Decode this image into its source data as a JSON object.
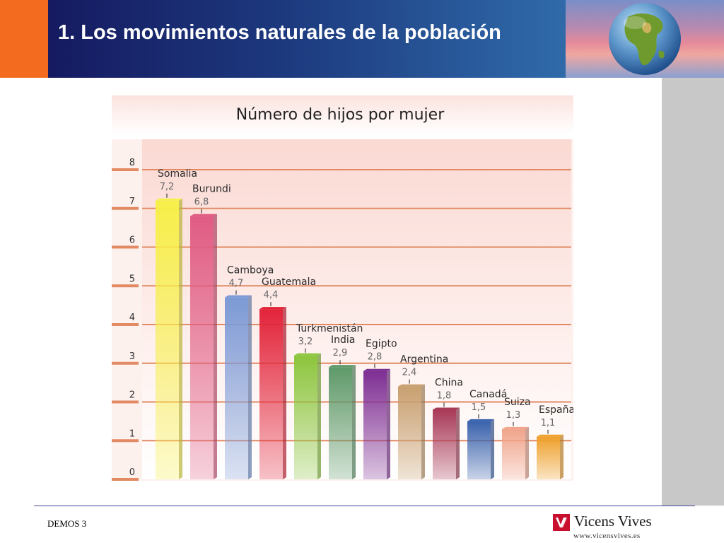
{
  "slide": {
    "title": "1. Los movimientos naturales de la población",
    "footer_left": "DEMOS 3",
    "logo_name": "Vicens Vives",
    "logo_url": "www.vicensvives.es"
  },
  "colors": {
    "header_orange": "#f26b1f",
    "header_blue": "#1d3a7f",
    "gridline": "#e28a64",
    "logo_red": "#c8102e"
  },
  "icons": {
    "globe": "globe-icon",
    "logo": "vicens-vives-logo-icon"
  },
  "chart_data": {
    "type": "bar",
    "title": "Número de hijos por mujer",
    "xlabel": "",
    "ylabel": "",
    "ylim": [
      0,
      8
    ],
    "yticks": [
      "0",
      "1",
      "2",
      "3",
      "4",
      "5",
      "6",
      "7",
      "8"
    ],
    "grid": true,
    "categories": [
      "Somalia",
      "Burundi",
      "Camboya",
      "Guatemala",
      "Turkmenistán",
      "India",
      "Egipto",
      "Argentina",
      "China",
      "Canadá",
      "Suiza",
      "España"
    ],
    "values": [
      7.2,
      6.8,
      4.7,
      4.4,
      3.2,
      2.9,
      2.8,
      2.4,
      1.8,
      1.5,
      1.3,
      1.1
    ],
    "value_labels": [
      "7,2",
      "6,8",
      "4,7",
      "4,4",
      "3,2",
      "2,9",
      "2,8",
      "2,4",
      "1,8",
      "1,5",
      "1,3",
      "1,1"
    ],
    "bar_colors": [
      "#f7ef4a",
      "#e05c84",
      "#7c9ad6",
      "#e2243a",
      "#8cc63e",
      "#5e9a6a",
      "#7e2f94",
      "#c8a070",
      "#a83a58",
      "#3a63ad",
      "#f0a48c",
      "#eea02c"
    ]
  }
}
